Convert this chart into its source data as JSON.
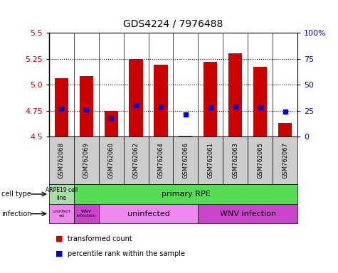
{
  "title": "GDS4224 / 7976488",
  "samples": [
    "GSM762068",
    "GSM762069",
    "GSM762060",
    "GSM762062",
    "GSM762064",
    "GSM762066",
    "GSM762061",
    "GSM762063",
    "GSM762065",
    "GSM762067"
  ],
  "transformed_counts": [
    5.06,
    5.08,
    4.75,
    5.25,
    5.19,
    4.51,
    5.22,
    5.3,
    5.17,
    4.63
  ],
  "percentile_ranks": [
    27,
    26,
    18,
    30,
    29,
    21,
    28,
    29,
    28,
    24
  ],
  "ylim": [
    4.5,
    5.5
  ],
  "yticks": [
    4.5,
    4.75,
    5.0,
    5.25,
    5.5
  ],
  "right_yticks": [
    0,
    25,
    50,
    75,
    100
  ],
  "bar_color": "#cc0000",
  "dot_color": "#0000cc",
  "bar_bottom": 4.5,
  "tick_label_color_left": "#cc0000",
  "tick_label_color_right": "#0000cc",
  "cell_type_color_1": "#aaddaa",
  "cell_type_color_2": "#55dd55",
  "infection_color_light": "#ee88ee",
  "infection_color_dark": "#cc44cc",
  "sample_bg_color": "#cccccc",
  "legend_dot_size": 8
}
